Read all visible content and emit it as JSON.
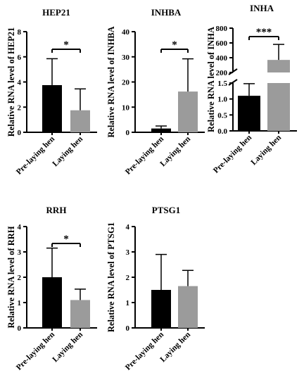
{
  "chart_data": [
    {
      "type": "bar",
      "title": "HEP21",
      "ylabel": "Relative RNA level of HEP21",
      "categories": [
        "Pre-laying hen",
        "Laying hen"
      ],
      "values": [
        3.75,
        1.75
      ],
      "errors": [
        2.1,
        1.7
      ],
      "ylim": [
        0,
        8
      ],
      "yticks": [
        "0",
        "2",
        "4",
        "6",
        "8"
      ],
      "colors": [
        "#000000",
        "#9b9b9b"
      ],
      "significance": "*"
    },
    {
      "type": "bar",
      "title": "INHBA",
      "ylabel": "Relative RNA level of INHBA",
      "categories": [
        "Pre-laying hen",
        "Laying hen"
      ],
      "values": [
        1.5,
        16.2
      ],
      "errors": [
        1.0,
        13.0
      ],
      "ylim": [
        0,
        40
      ],
      "yticks": [
        "0",
        "10",
        "20",
        "30",
        "40"
      ],
      "colors": [
        "#000000",
        "#9b9b9b"
      ],
      "significance": "*"
    },
    {
      "type": "bar",
      "title": "INHA",
      "ylabel": "Relative RNA level of INHA",
      "categories": [
        "Pre-laying hen",
        "Laying hen"
      ],
      "values": [
        1.1,
        370
      ],
      "errors": [
        0.38,
        210
      ],
      "ylim": [
        0,
        800
      ],
      "axis_break": [
        1.5,
        200
      ],
      "yticks_lower": [
        "0.0",
        "0.5",
        "1.0",
        "1.5"
      ],
      "yticks_upper": [
        "200",
        "400",
        "600",
        "800"
      ],
      "colors": [
        "#000000",
        "#9b9b9b"
      ],
      "significance": "***"
    },
    {
      "type": "bar",
      "title": "RRH",
      "ylabel": "Relative RNA level of RRH",
      "categories": [
        "Pre-laying hen",
        "Laying hen"
      ],
      "values": [
        2.0,
        1.1
      ],
      "errors": [
        1.15,
        0.43
      ],
      "ylim": [
        0,
        4
      ],
      "yticks": [
        "0",
        "1",
        "2",
        "3",
        "4"
      ],
      "colors": [
        "#000000",
        "#9b9b9b"
      ],
      "significance": "*"
    },
    {
      "type": "bar",
      "title": "PTSG1",
      "ylabel": "Relative RNA level of PTSG1",
      "categories": [
        "Pre-laying hen",
        "Laying hen"
      ],
      "values": [
        1.5,
        1.65
      ],
      "errors": [
        1.4,
        0.62
      ],
      "ylim": [
        0,
        4
      ],
      "yticks": [
        "0",
        "1",
        "2",
        "3",
        "4"
      ],
      "colors": [
        "#000000",
        "#9b9b9b"
      ],
      "significance": ""
    }
  ]
}
